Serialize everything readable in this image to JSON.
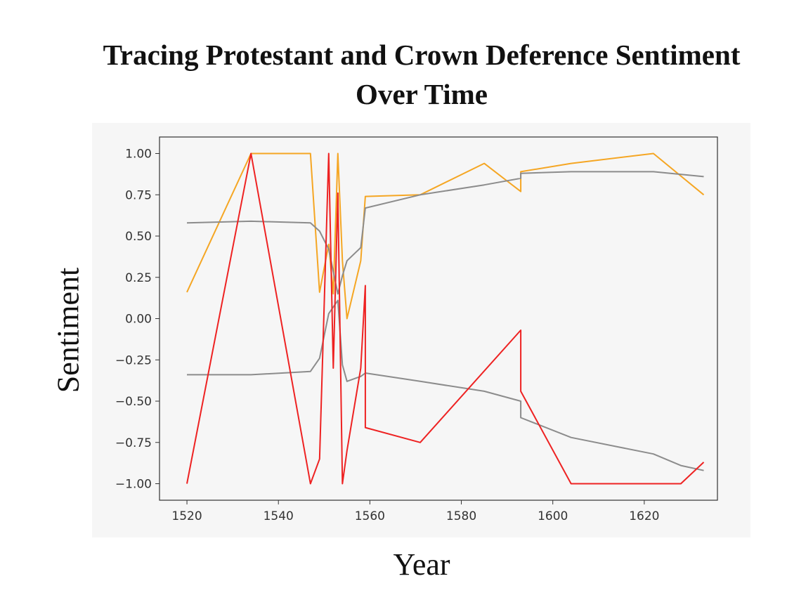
{
  "chart_data": {
    "type": "line",
    "title": "Tracing Protestant and Crown Deference Sentiment Over Time",
    "xlabel": "Year",
    "ylabel": "Sentiment",
    "xlim": [
      1514,
      1636
    ],
    "ylim": [
      -1.1,
      1.1
    ],
    "xticks": [
      1520,
      1540,
      1560,
      1580,
      1600,
      1620
    ],
    "yticks": [
      1.0,
      0.75,
      0.5,
      0.25,
      0.0,
      -0.25,
      -0.5,
      -0.75,
      -1.0
    ],
    "ytick_labels": [
      "1.00",
      "0.75",
      "0.50",
      "0.25",
      "0.00",
      "−0.25",
      "−0.50",
      "−0.75",
      "−1.00"
    ],
    "grid": false,
    "series": [
      {
        "color": "#f5a623",
        "x": [
          1520,
          1534,
          1547,
          1549,
          1551,
          1552,
          1553,
          1554,
          1555,
          1558,
          1559,
          1571,
          1585,
          1593,
          1593,
          1604,
          1622,
          1633
        ],
        "y": [
          0.16,
          1.0,
          1.0,
          0.16,
          0.45,
          0.15,
          1.0,
          0.35,
          0.0,
          0.35,
          0.74,
          0.75,
          0.94,
          0.77,
          0.89,
          0.94,
          1.0,
          0.75
        ]
      },
      {
        "color": "#8c8c8c",
        "x": [
          1520,
          1534,
          1547,
          1549,
          1551,
          1553,
          1554,
          1555,
          1558,
          1559,
          1571,
          1585,
          1593,
          1593,
          1604,
          1622,
          1633
        ],
        "y": [
          0.58,
          0.59,
          0.58,
          0.53,
          0.42,
          0.15,
          0.26,
          0.35,
          0.43,
          0.67,
          0.75,
          0.81,
          0.85,
          0.88,
          0.89,
          0.89,
          0.86
        ]
      },
      {
        "color": "#8c8c8c",
        "x": [
          1520,
          1534,
          1547,
          1549,
          1551,
          1553,
          1554,
          1555,
          1558,
          1559,
          1571,
          1585,
          1593,
          1593,
          1604,
          1622,
          1628,
          1633
        ],
        "y": [
          -0.34,
          -0.34,
          -0.32,
          -0.24,
          0.03,
          0.11,
          -0.28,
          -0.38,
          -0.35,
          -0.33,
          -0.38,
          -0.44,
          -0.5,
          -0.6,
          -0.72,
          -0.82,
          -0.89,
          -0.92
        ]
      },
      {
        "color": "#ee2222",
        "x": [
          1520,
          1534,
          1547,
          1549,
          1551,
          1552,
          1553,
          1554,
          1555,
          1558,
          1559,
          1559,
          1571,
          1593,
          1593,
          1604,
          1628,
          1633
        ],
        "y": [
          -1.0,
          1.0,
          -1.0,
          -0.85,
          1.0,
          -0.3,
          0.76,
          -1.0,
          -0.8,
          -0.3,
          0.2,
          -0.66,
          -0.75,
          -0.07,
          -0.44,
          -1.0,
          -1.0,
          -0.87
        ]
      }
    ]
  }
}
